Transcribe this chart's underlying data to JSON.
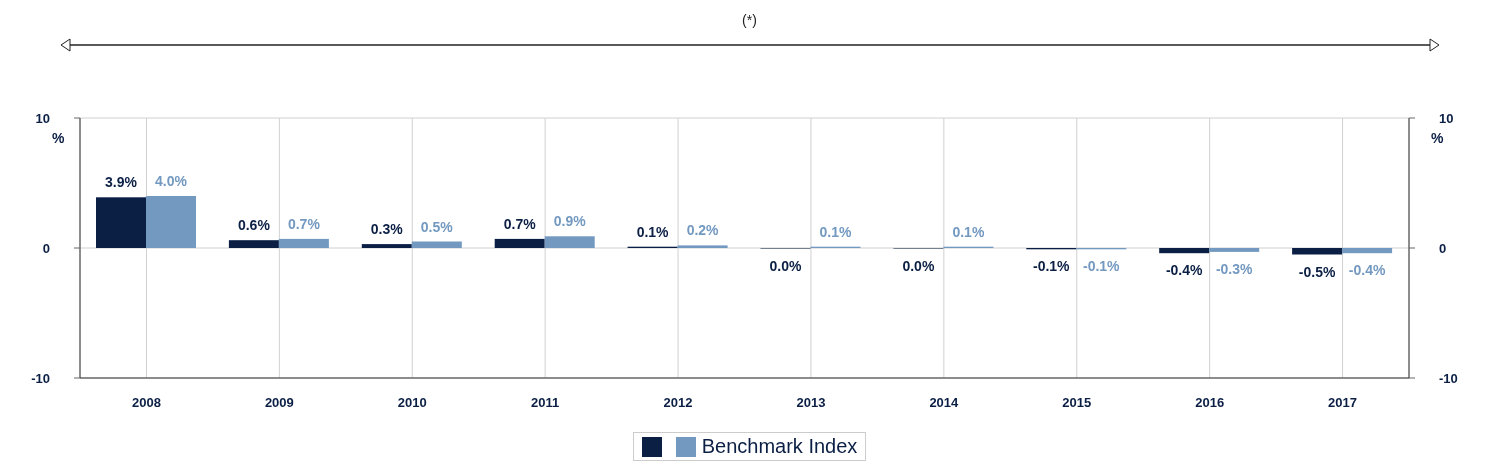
{
  "chart_data": {
    "type": "bar",
    "annotations": [
      "(*)"
    ],
    "categories": [
      "2008",
      "2009",
      "2010",
      "2011",
      "2012",
      "2013",
      "2014",
      "2015",
      "2016",
      "2017"
    ],
    "series": [
      {
        "color": "#0b1f45",
        "values": [
          3.9,
          0.6,
          0.3,
          0.7,
          0.1,
          -0.04,
          -0.04,
          -0.1,
          -0.4,
          -0.5
        ],
        "value_labels": [
          "3.9%",
          "0.6%",
          "0.3%",
          "0.7%",
          "0.1%",
          "0.0%",
          "0.0%",
          "-0.1%",
          "-0.4%",
          "-0.5%"
        ]
      },
      {
        "name": "Benchmark Index",
        "color": "#7399c0",
        "values": [
          4.0,
          0.7,
          0.5,
          0.9,
          0.2,
          0.1,
          0.1,
          -0.1,
          -0.3,
          -0.4
        ],
        "value_labels": [
          "4.0%",
          "0.7%",
          "0.5%",
          "0.9%",
          "0.2%",
          "0.1%",
          "0.1%",
          "-0.1%",
          "-0.3%",
          "-0.4%"
        ]
      }
    ],
    "ylabel": "%",
    "y2label": "%",
    "ylim": [
      -10,
      10
    ],
    "yticks": [
      -10,
      0,
      10
    ],
    "y2lim": [
      -10,
      10
    ],
    "y2ticks": [
      -10,
      0,
      10
    ],
    "grid": true,
    "legend": "bottom"
  }
}
